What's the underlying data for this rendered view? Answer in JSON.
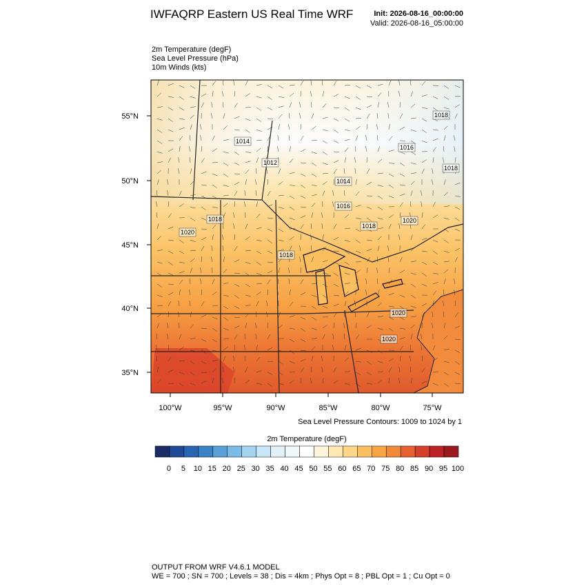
{
  "header": {
    "title": "IWFAQRP Eastern US Real Time WRF",
    "init": "Init: 2026-08-16_00:00:00",
    "valid": "Valid: 2026-08-16_05:00:00"
  },
  "fields": [
    "2m Temperature   (degF)",
    "Sea Level Pressure   (hPa)",
    "10m Winds   (kts)"
  ],
  "map": {
    "lat_labels": [
      "55°N",
      "50°N",
      "45°N",
      "40°N",
      "35°N"
    ],
    "lon_labels": [
      "100°W",
      "95°W",
      "90°W",
      "85°W",
      "80°W",
      "75°W"
    ],
    "contour_labels": [
      "1014",
      "1012",
      "1014",
      "1016",
      "1018",
      "1020",
      "1018",
      "1020",
      "1016",
      "1018",
      "1018",
      "1020",
      "1018",
      "1020"
    ],
    "contour_info": "Sea Level Pressure Contours: 1009 to 1024 by 1"
  },
  "colorbar": {
    "title": "2m Temperature  (degF)",
    "labels": [
      0,
      5,
      10,
      15,
      20,
      25,
      30,
      35,
      40,
      45,
      50,
      55,
      60,
      65,
      70,
      75,
      80,
      85,
      90,
      95,
      100
    ],
    "colors": [
      "#1b2c66",
      "#1f4b96",
      "#2866b2",
      "#3a82c4",
      "#58a0d6",
      "#7cbbe5",
      "#a4d4ef",
      "#c8e6f5",
      "#e2f1f8",
      "#f1f8fb",
      "#ffffff",
      "#fff5dc",
      "#ffe8b4",
      "#fdd68a",
      "#fbbf60",
      "#f8a444",
      "#f1893a",
      "#e7612e",
      "#d63f29",
      "#bd2227",
      "#9c1a1e"
    ]
  },
  "footer": [
    "OUTPUT FROM WRF V4.6.1 MODEL",
    "WE = 700 ; SN = 700 ; Levels = 38 ; Dis = 4km ; Phys Opt = 8 ; PBL Opt = 1 ; Cu Opt = 0"
  ]
}
